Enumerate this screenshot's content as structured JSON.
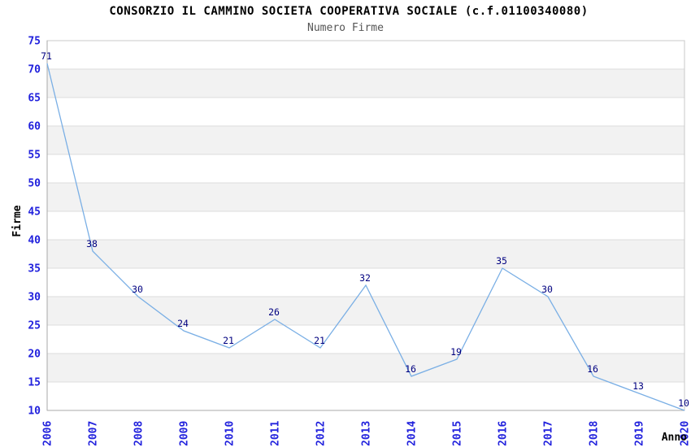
{
  "chart_data": {
    "type": "line",
    "title": "CONSORZIO IL CAMMINO SOCIETA COOPERATIVA SOCIALE (c.f.01100340080)",
    "subtitle": "Numero Firme",
    "xlabel": "Anno",
    "ylabel": "Firme",
    "categories": [
      "2006",
      "2007",
      "2008",
      "2009",
      "2010",
      "2011",
      "2012",
      "2013",
      "2014",
      "2015",
      "2016",
      "2017",
      "2018",
      "2019",
      "2020"
    ],
    "series": [
      {
        "name": "Numero Firme",
        "values": [
          71,
          38,
          30,
          24,
          21,
          26,
          21,
          32,
          16,
          19,
          35,
          30,
          16,
          13,
          10
        ]
      }
    ],
    "ylim": [
      10,
      75
    ],
    "ytick_step": 5,
    "yticks": [
      10,
      15,
      20,
      25,
      30,
      35,
      40,
      45,
      50,
      55,
      60,
      65,
      70,
      75
    ],
    "grid": "horizontal-alternating-bands",
    "legend": "none",
    "point_labels_visible": true,
    "colors": {
      "line": "#7aafe5",
      "tick_label": "#2222dd",
      "data_label": "#000080",
      "band_fill": "#f2f2f2",
      "gridline": "#dcdcdc",
      "plot_border": "#c8c8c8",
      "axis_line": "#a8a8a8",
      "title": "#000000",
      "subtitle": "#555555",
      "axis_title": "#000000",
      "background": "#ffffff"
    }
  }
}
